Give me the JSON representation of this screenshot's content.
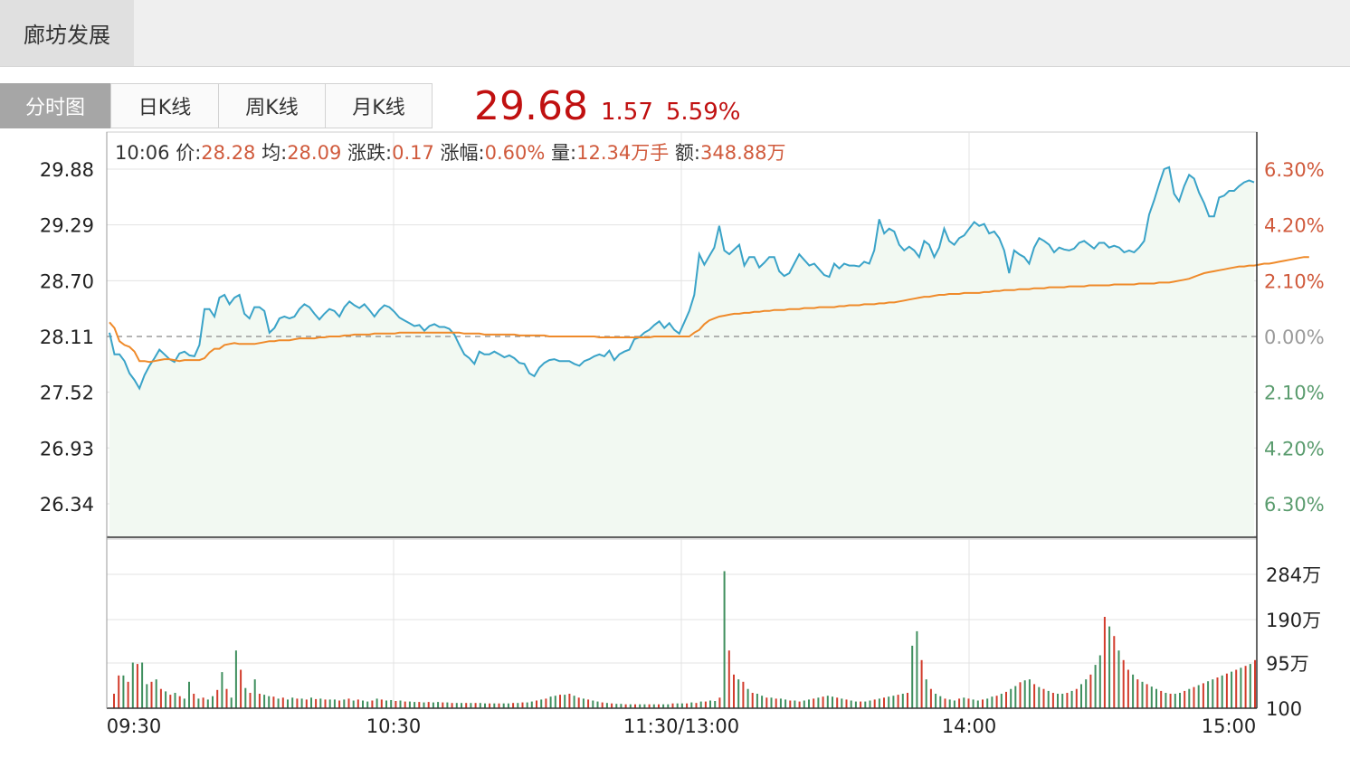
{
  "stock_name": "廊坊发展",
  "tabs": [
    "分时图",
    "日K线",
    "周K线",
    "月K线"
  ],
  "active_tab": "分时图",
  "quote": {
    "price": "29.68",
    "change": "1.57",
    "change_pct": "5.59%"
  },
  "tooltip": {
    "time": "10:06",
    "price_label": "价:",
    "price": "28.28",
    "avg_label": "均:",
    "avg": "28.09",
    "change_label": "涨跌:",
    "change": "0.17",
    "pct_label": "涨幅:",
    "pct": "0.60%",
    "vol_label": "量:",
    "vol": "12.34万手",
    "amount_label": "额:",
    "amount": "348.88万"
  },
  "colors": {
    "price_line": "#3aa3c8",
    "avg_line": "#ef8a2a",
    "up": "#d23c2c",
    "down": "#3f8f5e",
    "area": "#f2f9f2",
    "pct_up": "#d05a3c",
    "pct_down": "#5a9c6e"
  },
  "chart_data": [
    {
      "type": "line",
      "title": "",
      "x_ticks": [
        "09:30",
        "10:30",
        "11:30/13:00",
        "14:00",
        "15:00"
      ],
      "y_ticks": [
        "29.88",
        "29.29",
        "28.70",
        "28.11",
        "27.52",
        "26.93",
        "26.34"
      ],
      "y_ticks_right": [
        "6.30%",
        "4.20%",
        "2.10%",
        "0.00%",
        "2.10%",
        "4.20%",
        "6.30%"
      ],
      "prev_close": 28.11,
      "ylim": [
        25.99,
        30.23
      ],
      "grid": true,
      "series": [
        {
          "values": [
            28.15,
            27.92,
            27.92,
            27.85,
            27.72,
            27.65,
            27.56,
            27.7,
            27.8,
            27.88,
            27.97,
            27.92,
            27.87,
            27.84,
            27.93,
            27.95,
            27.91,
            27.9,
            28.02,
            28.4,
            28.4,
            28.32,
            28.52,
            28.55,
            28.45,
            28.52,
            28.55,
            28.35,
            28.3,
            28.42,
            28.42,
            28.38,
            28.15,
            28.2,
            28.3,
            28.32,
            28.3,
            28.32,
            28.4,
            28.45,
            28.42,
            28.35,
            28.29,
            28.35,
            28.4,
            28.38,
            28.32,
            28.42,
            28.48,
            28.44,
            28.41,
            28.45,
            28.39,
            28.32,
            28.39,
            28.44,
            28.42,
            28.37,
            28.31,
            28.28,
            28.25,
            28.22,
            28.23,
            28.17,
            28.22,
            28.24,
            28.21,
            28.21,
            28.19,
            28.13,
            28.02,
            27.92,
            27.88,
            27.82,
            27.95,
            27.92,
            27.92,
            27.95,
            27.92,
            27.89,
            27.91,
            27.88,
            27.83,
            27.82,
            27.72,
            27.69,
            27.78,
            27.83,
            27.86,
            27.87,
            27.85,
            27.85,
            27.85,
            27.82,
            27.8,
            27.85,
            27.87,
            27.9,
            27.92,
            27.9,
            27.96,
            27.86,
            27.92,
            27.95,
            27.97,
            28.08,
            28.1,
            28.15,
            28.18,
            28.23,
            28.27,
            28.2,
            28.25,
            28.18,
            28.14,
            28.26,
            28.38,
            28.55,
            28.98,
            28.87,
            28.96,
            29.05,
            29.28,
            29.02,
            28.98,
            29.03,
            29.08,
            28.86,
            28.95,
            28.95,
            28.84,
            28.89,
            28.95,
            28.95,
            28.8,
            28.75,
            28.78,
            28.88,
            28.98,
            28.92,
            28.86,
            28.88,
            28.82,
            28.76,
            28.74,
            28.88,
            28.83,
            28.88,
            28.86,
            28.86,
            28.85,
            28.9,
            28.88,
            29.02,
            29.35,
            29.2,
            29.25,
            29.22,
            29.08,
            29.02,
            29.06,
            29.02,
            28.95,
            29.12,
            29.08,
            28.95,
            29.05,
            29.25,
            29.12,
            29.08,
            29.15,
            29.18,
            29.25,
            29.32,
            29.28,
            29.3,
            29.2,
            29.22,
            29.15,
            29.02,
            28.78,
            29.02,
            28.98,
            28.95,
            28.88,
            29.05,
            29.15,
            29.12,
            29.08,
            29.0,
            29.05,
            29.03,
            29.02,
            29.04,
            29.1,
            29.12,
            29.08,
            29.04,
            29.1,
            29.1,
            29.05,
            29.07,
            29.05,
            29.0,
            29.02,
            29.0,
            29.05,
            29.12,
            29.4,
            29.55,
            29.72,
            29.88,
            29.9,
            29.62,
            29.54,
            29.7,
            29.82,
            29.78,
            29.63,
            29.52,
            29.38,
            29.38,
            29.58,
            29.6,
            29.65,
            29.65,
            29.7,
            29.74,
            29.76,
            29.74
          ]
        },
        {
          "values": [
            28.26,
            28.2,
            28.06,
            28.02,
            28.0,
            27.95,
            27.85,
            27.85,
            27.84,
            27.85,
            27.86,
            27.87,
            27.87,
            27.86,
            27.85,
            27.86,
            27.86,
            27.86,
            27.86,
            27.88,
            27.94,
            27.98,
            27.98,
            28.02,
            28.03,
            28.04,
            28.03,
            28.03,
            28.03,
            28.03,
            28.04,
            28.05,
            28.06,
            28.06,
            28.07,
            28.07,
            28.07,
            28.08,
            28.09,
            28.09,
            28.09,
            28.09,
            28.1,
            28.1,
            28.11,
            28.11,
            28.11,
            28.12,
            28.12,
            28.13,
            28.13,
            28.13,
            28.13,
            28.14,
            28.14,
            28.14,
            28.14,
            28.14,
            28.15,
            28.15,
            28.15,
            28.15,
            28.15,
            28.15,
            28.15,
            28.15,
            28.15,
            28.15,
            28.15,
            28.15,
            28.15,
            28.14,
            28.14,
            28.14,
            28.14,
            28.13,
            28.13,
            28.13,
            28.13,
            28.13,
            28.13,
            28.13,
            28.12,
            28.12,
            28.12,
            28.12,
            28.12,
            28.12,
            28.11,
            28.11,
            28.11,
            28.11,
            28.11,
            28.11,
            28.11,
            28.11,
            28.11,
            28.11,
            28.1,
            28.1,
            28.1,
            28.1,
            28.1,
            28.1,
            28.1,
            28.1,
            28.1,
            28.1,
            28.1,
            28.11,
            28.11,
            28.11,
            28.11,
            28.11,
            28.11,
            28.11,
            28.11,
            28.15,
            28.18,
            28.24,
            28.28,
            28.3,
            28.32,
            28.33,
            28.34,
            28.35,
            28.35,
            28.36,
            28.36,
            28.37,
            28.37,
            28.38,
            28.38,
            28.39,
            28.39,
            28.39,
            28.4,
            28.4,
            28.4,
            28.41,
            28.41,
            28.41,
            28.42,
            28.42,
            28.42,
            28.42,
            28.43,
            28.43,
            28.44,
            28.44,
            28.44,
            28.45,
            28.45,
            28.45,
            28.46,
            28.46,
            28.47,
            28.47,
            28.48,
            28.49,
            28.5,
            28.51,
            28.52,
            28.53,
            28.53,
            28.54,
            28.55,
            28.55,
            28.56,
            28.56,
            28.56,
            28.57,
            28.57,
            28.57,
            28.57,
            28.58,
            28.58,
            28.59,
            28.59,
            28.6,
            28.6,
            28.6,
            28.61,
            28.61,
            28.61,
            28.62,
            28.62,
            28.62,
            28.63,
            28.63,
            28.63,
            28.63,
            28.64,
            28.64,
            28.64,
            28.64,
            28.65,
            28.65,
            28.65,
            28.65,
            28.65,
            28.66,
            28.66,
            28.66,
            28.66,
            28.66,
            28.67,
            28.67,
            28.67,
            28.67,
            28.68,
            28.68,
            28.68,
            28.69,
            28.7,
            28.71,
            28.72,
            28.74,
            28.76,
            28.78,
            28.79,
            28.8,
            28.81,
            28.82,
            28.83,
            28.84,
            28.85,
            28.85,
            28.86,
            28.86,
            28.87,
            28.88,
            28.88,
            28.89,
            28.9,
            28.91,
            28.92,
            28.93,
            28.94,
            28.95,
            28.95
          ]
        }
      ]
    },
    {
      "type": "bar",
      "title": "",
      "y_ticks": [
        "284万",
        "190万",
        "95万",
        "100"
      ],
      "ylim": [
        0,
        284
      ],
      "series": [
        {
          "values": [
            30,
            68,
            68,
            55,
            95,
            92,
            95,
            50,
            55,
            60,
            40,
            35,
            28,
            32,
            25,
            20,
            55,
            30,
            20,
            22,
            18,
            25,
            38,
            75,
            40,
            22,
            120,
            80,
            42,
            32,
            60,
            30,
            28,
            25,
            24,
            20,
            22,
            18,
            22,
            20,
            20,
            18,
            22,
            19,
            20,
            18,
            18,
            18,
            16,
            18,
            20,
            16,
            18,
            16,
            14,
            16,
            20,
            18,
            16,
            17,
            15,
            16,
            14,
            14,
            13,
            13,
            12,
            13,
            12,
            13,
            12,
            12,
            11,
            11,
            11,
            11,
            11,
            11,
            11,
            10,
            10,
            10,
            10,
            10,
            10,
            11,
            11,
            12,
            12,
            14,
            16,
            18,
            20,
            24,
            26,
            28,
            28,
            30,
            26,
            22,
            20,
            18,
            16,
            14,
            12,
            11,
            10,
            9,
            9,
            8,
            8,
            8,
            8,
            8,
            8,
            8,
            8,
            8,
            8,
            10,
            10,
            10,
            10,
            12,
            11,
            14,
            14,
            16,
            15,
            22,
            285,
            120,
            70,
            60,
            55,
            40,
            32,
            30,
            26,
            22,
            22,
            20,
            20,
            18,
            16,
            16,
            14,
            16,
            18,
            20,
            22,
            24,
            26,
            24,
            22,
            20,
            18,
            16,
            14,
            14,
            14,
            16,
            18,
            20,
            22,
            24,
            26,
            28,
            30,
            32,
            130,
            160,
            100,
            60,
            40,
            30,
            25,
            20,
            18,
            16,
            20,
            22,
            20,
            18,
            16,
            18,
            20,
            24,
            26,
            30,
            34,
            40,
            46,
            54,
            58,
            60,
            50,
            44,
            40,
            36,
            32,
            30,
            30,
            32,
            36,
            40,
            50,
            60,
            70,
            90,
            110,
            190,
            170,
            150,
            120,
            100,
            80,
            70,
            60,
            55,
            50,
            45,
            40,
            36,
            32,
            30,
            30,
            32,
            36,
            40,
            44,
            48,
            52,
            56,
            60,
            64,
            68,
            72,
            76,
            80,
            84,
            88,
            92,
            100
          ],
          "up": [
            1,
            1,
            0,
            1,
            0,
            1,
            0,
            0,
            1,
            0,
            1,
            0,
            1,
            0,
            1,
            0,
            0,
            1,
            0,
            1,
            0,
            0,
            1,
            0,
            1,
            0,
            0,
            1,
            0,
            1,
            0,
            1,
            0,
            0,
            1,
            0,
            1,
            0,
            0,
            1,
            0,
            1,
            0,
            1,
            0,
            1,
            0,
            0,
            1,
            0,
            1,
            0,
            1,
            0,
            0,
            1,
            0,
            1,
            0,
            0,
            1,
            0,
            1,
            0,
            0,
            1,
            0,
            1,
            0,
            0,
            1,
            0,
            1,
            0,
            0,
            1,
            0,
            1,
            0,
            0,
            1,
            0,
            1,
            0,
            0,
            1,
            0,
            1,
            0,
            0,
            1,
            0,
            1,
            0,
            0,
            1,
            0,
            1,
            0,
            1,
            0,
            1,
            0,
            0,
            1,
            0,
            1,
            0,
            0,
            1,
            0,
            1,
            0,
            0,
            1,
            0,
            1,
            0,
            0,
            1,
            0,
            0,
            1,
            0,
            1,
            0,
            1,
            0,
            0,
            1,
            0,
            1,
            1,
            0,
            1,
            0,
            1,
            0,
            0,
            1,
            0,
            1,
            0,
            0,
            1,
            0,
            1,
            0,
            0,
            1,
            0,
            1,
            0,
            0,
            1,
            0,
            1,
            0,
            0,
            1,
            0,
            0,
            1,
            0,
            1,
            0,
            0,
            1,
            0,
            1,
            0,
            0,
            1,
            0,
            1,
            0,
            0,
            1,
            0,
            0,
            1,
            0,
            1,
            0,
            0,
            1,
            0,
            0,
            1,
            0,
            1,
            0,
            0,
            1,
            0,
            0,
            1,
            0,
            1,
            0,
            1,
            0,
            0,
            1,
            0,
            1,
            0,
            0,
            1,
            0,
            0,
            1,
            0,
            1,
            0,
            1,
            1,
            0,
            1,
            0,
            1,
            0,
            0,
            1,
            0,
            1,
            0,
            0,
            1,
            0,
            1,
            0,
            1,
            0,
            0,
            1,
            0,
            1,
            0,
            1,
            0,
            1,
            0,
            1,
            0,
            1,
            0
          ]
        }
      ]
    }
  ]
}
